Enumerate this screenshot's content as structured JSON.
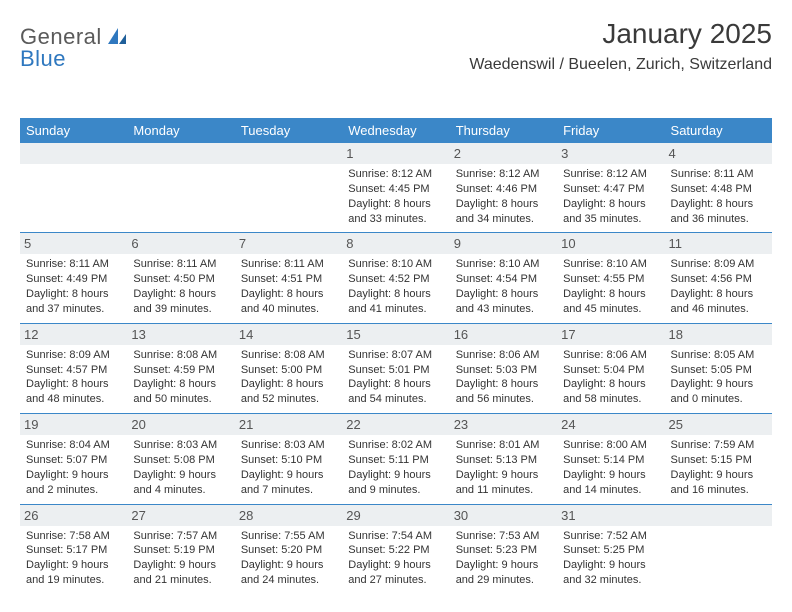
{
  "brand": {
    "name_a": "General",
    "name_b": "Blue"
  },
  "title": "January 2025",
  "location": "Waedenswil / Bueelen, Zurich, Switzerland",
  "colors": {
    "header_bg": "#3b87c8",
    "header_text": "#ffffff",
    "daynum_bg": "#eceff1",
    "daynum_text": "#555555",
    "body_text": "#333333",
    "rule": "#3b87c8",
    "brand_gray": "#5a5a5a",
    "brand_blue": "#2f78bf"
  },
  "dow": [
    "Sunday",
    "Monday",
    "Tuesday",
    "Wednesday",
    "Thursday",
    "Friday",
    "Saturday"
  ],
  "weeks": [
    [
      {
        "n": "",
        "sr": "",
        "ss": "",
        "dl": ""
      },
      {
        "n": "",
        "sr": "",
        "ss": "",
        "dl": ""
      },
      {
        "n": "",
        "sr": "",
        "ss": "",
        "dl": ""
      },
      {
        "n": "1",
        "sr": "Sunrise: 8:12 AM",
        "ss": "Sunset: 4:45 PM",
        "dl": "Daylight: 8 hours and 33 minutes."
      },
      {
        "n": "2",
        "sr": "Sunrise: 8:12 AM",
        "ss": "Sunset: 4:46 PM",
        "dl": "Daylight: 8 hours and 34 minutes."
      },
      {
        "n": "3",
        "sr": "Sunrise: 8:12 AM",
        "ss": "Sunset: 4:47 PM",
        "dl": "Daylight: 8 hours and 35 minutes."
      },
      {
        "n": "4",
        "sr": "Sunrise: 8:11 AM",
        "ss": "Sunset: 4:48 PM",
        "dl": "Daylight: 8 hours and 36 minutes."
      }
    ],
    [
      {
        "n": "5",
        "sr": "Sunrise: 8:11 AM",
        "ss": "Sunset: 4:49 PM",
        "dl": "Daylight: 8 hours and 37 minutes."
      },
      {
        "n": "6",
        "sr": "Sunrise: 8:11 AM",
        "ss": "Sunset: 4:50 PM",
        "dl": "Daylight: 8 hours and 39 minutes."
      },
      {
        "n": "7",
        "sr": "Sunrise: 8:11 AM",
        "ss": "Sunset: 4:51 PM",
        "dl": "Daylight: 8 hours and 40 minutes."
      },
      {
        "n": "8",
        "sr": "Sunrise: 8:10 AM",
        "ss": "Sunset: 4:52 PM",
        "dl": "Daylight: 8 hours and 41 minutes."
      },
      {
        "n": "9",
        "sr": "Sunrise: 8:10 AM",
        "ss": "Sunset: 4:54 PM",
        "dl": "Daylight: 8 hours and 43 minutes."
      },
      {
        "n": "10",
        "sr": "Sunrise: 8:10 AM",
        "ss": "Sunset: 4:55 PM",
        "dl": "Daylight: 8 hours and 45 minutes."
      },
      {
        "n": "11",
        "sr": "Sunrise: 8:09 AM",
        "ss": "Sunset: 4:56 PM",
        "dl": "Daylight: 8 hours and 46 minutes."
      }
    ],
    [
      {
        "n": "12",
        "sr": "Sunrise: 8:09 AM",
        "ss": "Sunset: 4:57 PM",
        "dl": "Daylight: 8 hours and 48 minutes."
      },
      {
        "n": "13",
        "sr": "Sunrise: 8:08 AM",
        "ss": "Sunset: 4:59 PM",
        "dl": "Daylight: 8 hours and 50 minutes."
      },
      {
        "n": "14",
        "sr": "Sunrise: 8:08 AM",
        "ss": "Sunset: 5:00 PM",
        "dl": "Daylight: 8 hours and 52 minutes."
      },
      {
        "n": "15",
        "sr": "Sunrise: 8:07 AM",
        "ss": "Sunset: 5:01 PM",
        "dl": "Daylight: 8 hours and 54 minutes."
      },
      {
        "n": "16",
        "sr": "Sunrise: 8:06 AM",
        "ss": "Sunset: 5:03 PM",
        "dl": "Daylight: 8 hours and 56 minutes."
      },
      {
        "n": "17",
        "sr": "Sunrise: 8:06 AM",
        "ss": "Sunset: 5:04 PM",
        "dl": "Daylight: 8 hours and 58 minutes."
      },
      {
        "n": "18",
        "sr": "Sunrise: 8:05 AM",
        "ss": "Sunset: 5:05 PM",
        "dl": "Daylight: 9 hours and 0 minutes."
      }
    ],
    [
      {
        "n": "19",
        "sr": "Sunrise: 8:04 AM",
        "ss": "Sunset: 5:07 PM",
        "dl": "Daylight: 9 hours and 2 minutes."
      },
      {
        "n": "20",
        "sr": "Sunrise: 8:03 AM",
        "ss": "Sunset: 5:08 PM",
        "dl": "Daylight: 9 hours and 4 minutes."
      },
      {
        "n": "21",
        "sr": "Sunrise: 8:03 AM",
        "ss": "Sunset: 5:10 PM",
        "dl": "Daylight: 9 hours and 7 minutes."
      },
      {
        "n": "22",
        "sr": "Sunrise: 8:02 AM",
        "ss": "Sunset: 5:11 PM",
        "dl": "Daylight: 9 hours and 9 minutes."
      },
      {
        "n": "23",
        "sr": "Sunrise: 8:01 AM",
        "ss": "Sunset: 5:13 PM",
        "dl": "Daylight: 9 hours and 11 minutes."
      },
      {
        "n": "24",
        "sr": "Sunrise: 8:00 AM",
        "ss": "Sunset: 5:14 PM",
        "dl": "Daylight: 9 hours and 14 minutes."
      },
      {
        "n": "25",
        "sr": "Sunrise: 7:59 AM",
        "ss": "Sunset: 5:15 PM",
        "dl": "Daylight: 9 hours and 16 minutes."
      }
    ],
    [
      {
        "n": "26",
        "sr": "Sunrise: 7:58 AM",
        "ss": "Sunset: 5:17 PM",
        "dl": "Daylight: 9 hours and 19 minutes."
      },
      {
        "n": "27",
        "sr": "Sunrise: 7:57 AM",
        "ss": "Sunset: 5:19 PM",
        "dl": "Daylight: 9 hours and 21 minutes."
      },
      {
        "n": "28",
        "sr": "Sunrise: 7:55 AM",
        "ss": "Sunset: 5:20 PM",
        "dl": "Daylight: 9 hours and 24 minutes."
      },
      {
        "n": "29",
        "sr": "Sunrise: 7:54 AM",
        "ss": "Sunset: 5:22 PM",
        "dl": "Daylight: 9 hours and 27 minutes."
      },
      {
        "n": "30",
        "sr": "Sunrise: 7:53 AM",
        "ss": "Sunset: 5:23 PM",
        "dl": "Daylight: 9 hours and 29 minutes."
      },
      {
        "n": "31",
        "sr": "Sunrise: 7:52 AM",
        "ss": "Sunset: 5:25 PM",
        "dl": "Daylight: 9 hours and 32 minutes."
      },
      {
        "n": "",
        "sr": "",
        "ss": "",
        "dl": ""
      }
    ]
  ]
}
